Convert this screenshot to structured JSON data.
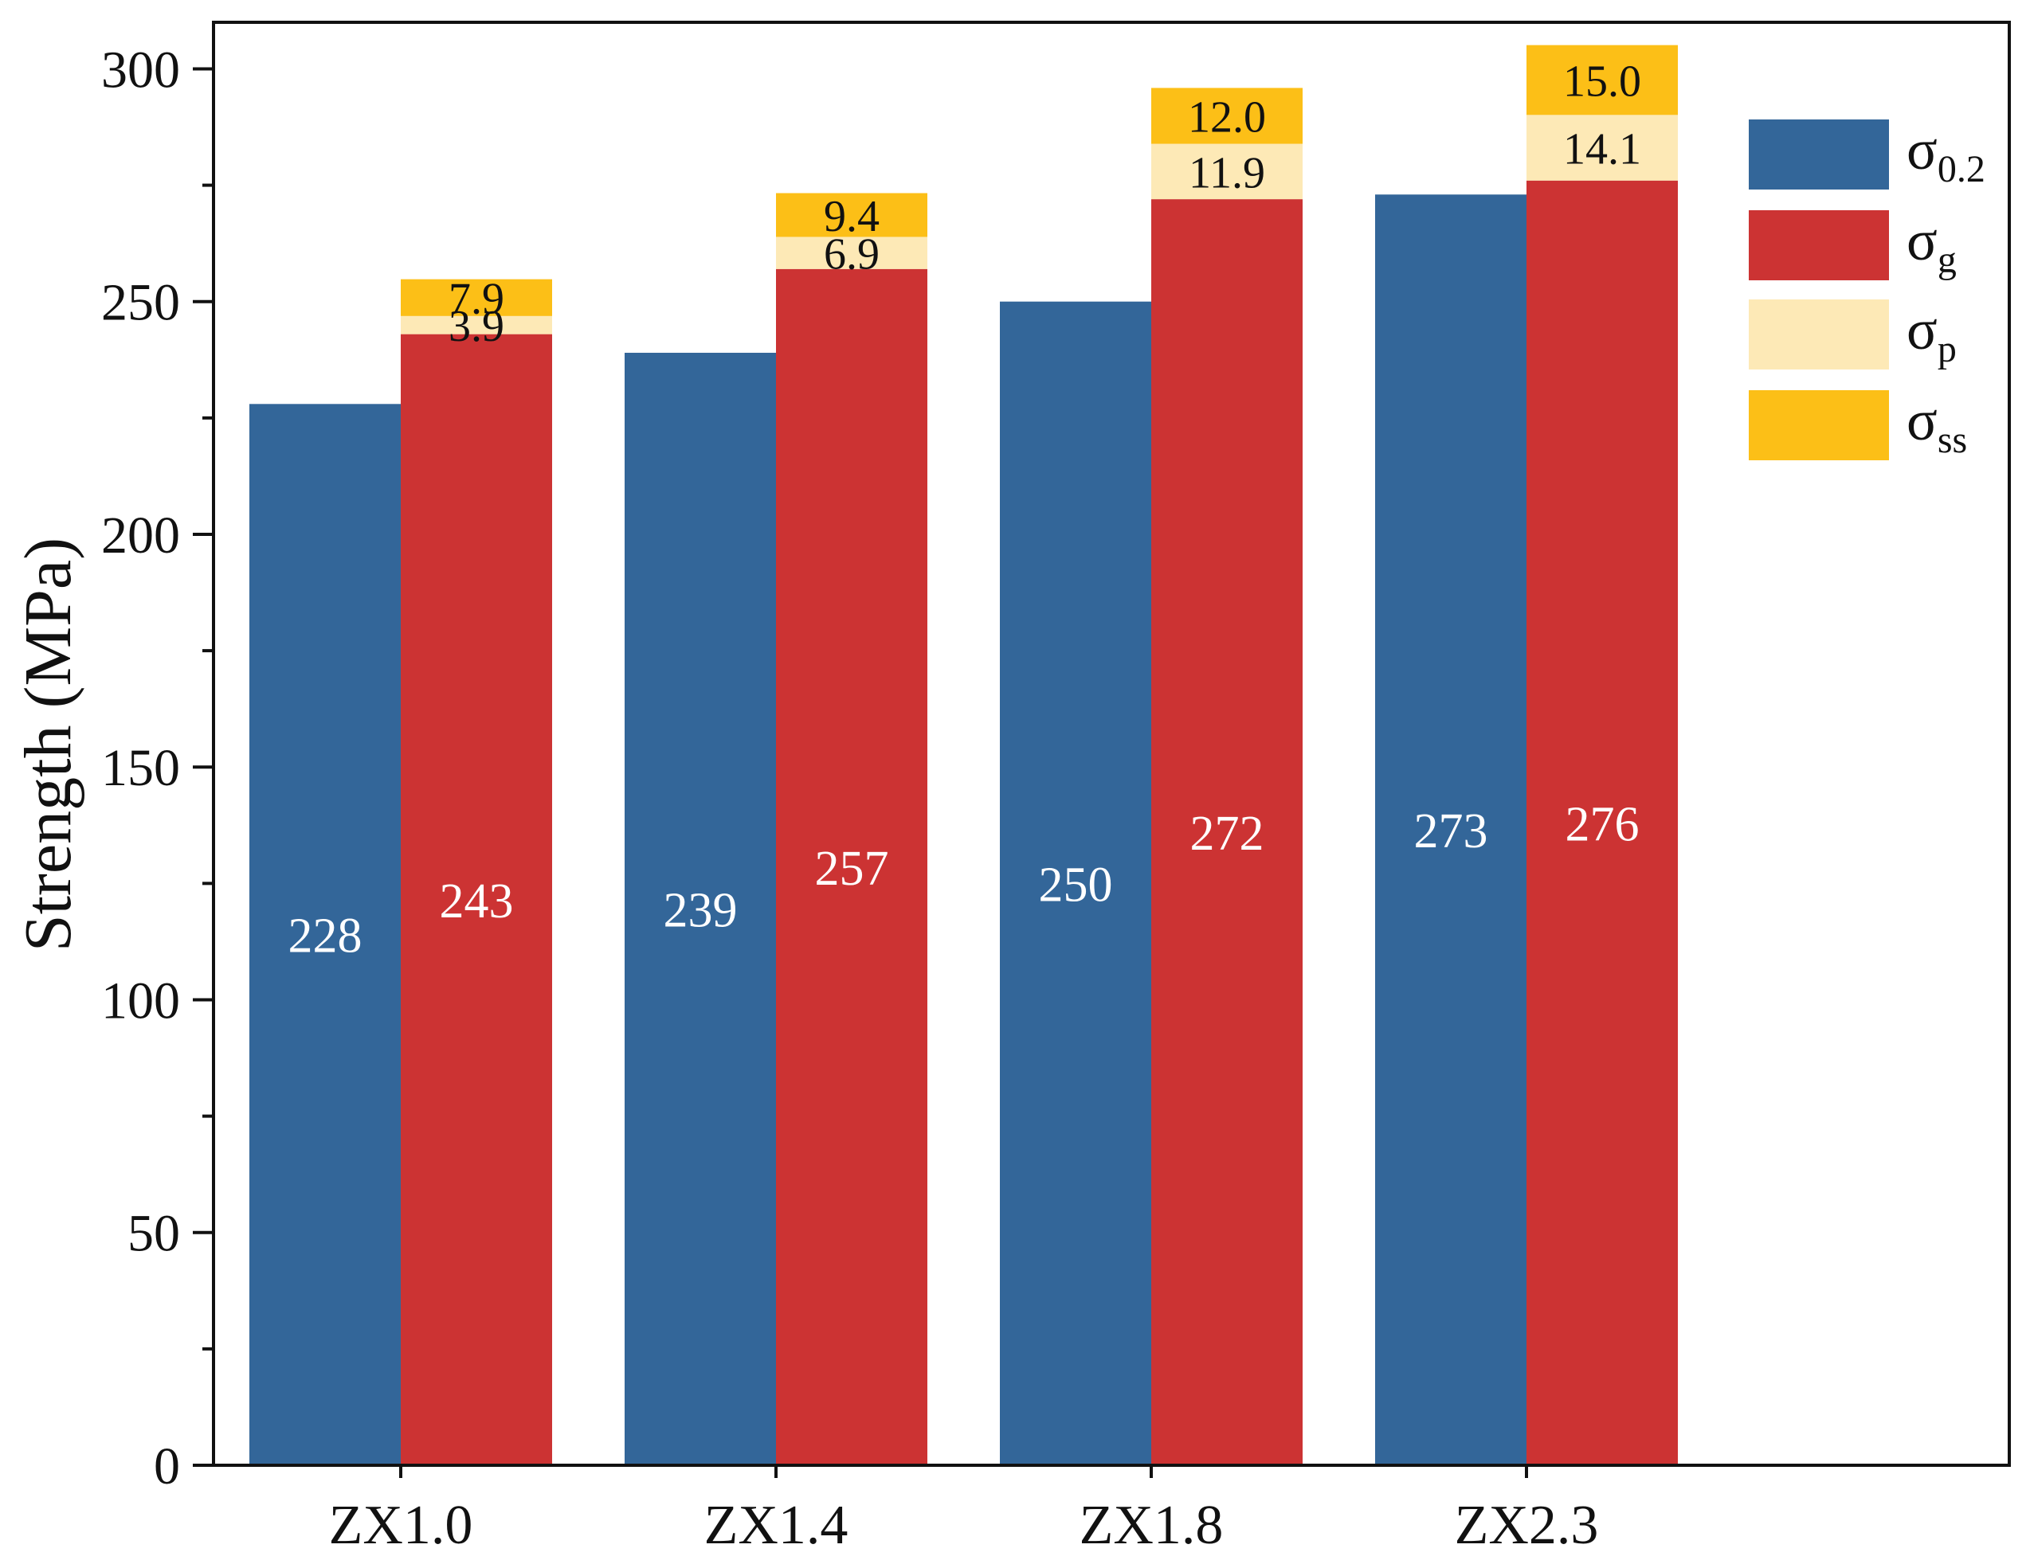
{
  "chart_data": {
    "type": "bar",
    "stacked_second_bar": true,
    "categories": [
      "ZX1.0",
      "ZX1.4",
      "ZX1.8",
      "ZX2.3"
    ],
    "ylabel": "Strength (MPa)",
    "xlabel": "",
    "ylim": [
      0,
      310
    ],
    "yticks": [
      0,
      50,
      100,
      150,
      200,
      250,
      300
    ],
    "ytick_labels": [
      "0",
      "50",
      "100",
      "150",
      "200",
      "250",
      "300"
    ],
    "grid": false,
    "legend_position": "top-right",
    "series": [
      {
        "name": "σ0.2",
        "name_base": "σ",
        "name_sub": "0.2",
        "color": "#336699",
        "stack": "measured",
        "values": [
          228,
          239,
          250,
          273
        ],
        "labels": [
          "228",
          "239",
          "250",
          "273"
        ]
      },
      {
        "name": "σg",
        "name_base": "σ",
        "name_sub": "g",
        "color": "#cc3333",
        "stack": "calculated",
        "values": [
          243,
          257,
          272,
          276
        ],
        "labels": [
          "243",
          "257",
          "272",
          "276"
        ]
      },
      {
        "name": "σp",
        "name_base": "σ",
        "name_sub": "p",
        "color": "#fde9b6",
        "stack": "calculated",
        "values": [
          3.9,
          6.9,
          11.9,
          14.1
        ],
        "labels": [
          "3.9",
          "6.9",
          "11.9",
          "14.1"
        ]
      },
      {
        "name": "σss",
        "name_base": "σ",
        "name_sub": "ss",
        "color": "#fcbf17",
        "stack": "calculated",
        "values": [
          7.9,
          9.4,
          12.0,
          15.0
        ],
        "labels": [
          "7.9",
          "9.4",
          "12.0",
          "15.0"
        ]
      }
    ]
  }
}
